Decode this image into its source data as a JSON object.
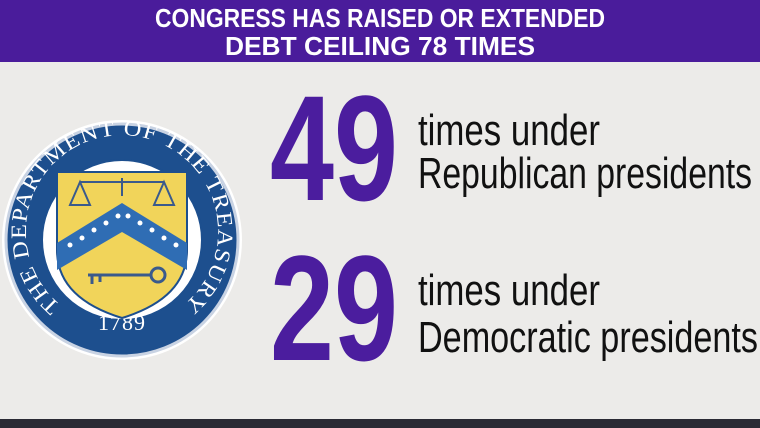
{
  "header": {
    "title_lines": [
      "CONGRESS HAS RAISED OR EXTENDED",
      "DEBT CEILING 78 TIMES"
    ]
  },
  "seal": {
    "ring_text": "THE DEPARTMENT OF THE TREASURY",
    "year": "1789"
  },
  "stats": [
    {
      "number": 49,
      "line1": "times under",
      "line2": "Republican presidents"
    },
    {
      "number": 29,
      "line1": "times under",
      "line2": "Democratic presidents"
    }
  ]
}
